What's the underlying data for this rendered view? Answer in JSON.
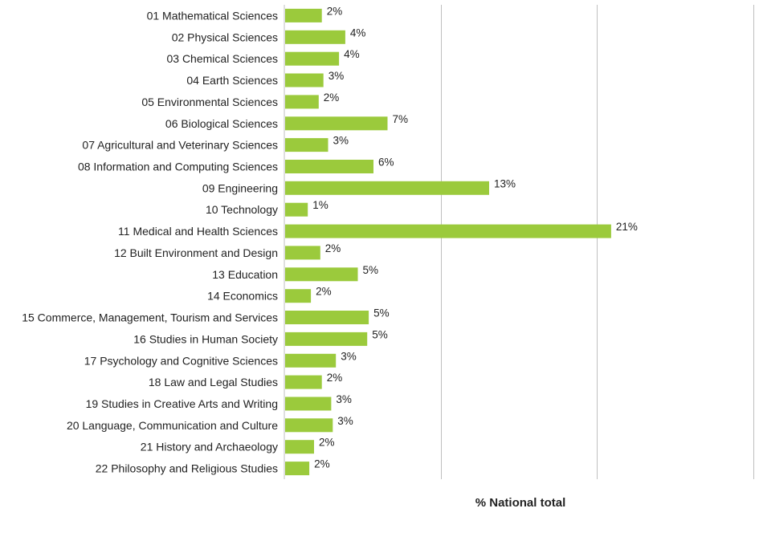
{
  "chart_data": {
    "type": "bar",
    "orientation": "horizontal",
    "categories": [
      "01 Mathematical Sciences",
      "02 Physical Sciences",
      "03 Chemical Sciences",
      "04 Earth Sciences",
      "05 Environmental Sciences",
      "06 Biological Sciences",
      "07 Agricultural and Veterinary Sciences",
      "08 Information and Computing Sciences",
      "09 Engineering",
      "10 Technology",
      "11 Medical and Health Sciences",
      "12 Built Environment and Design",
      "13 Education",
      "14 Economics",
      "15 Commerce, Management, Tourism and Services",
      "16 Studies in Human Society",
      "17 Psychology and Cognitive Sciences",
      "18 Law and Legal Studies",
      "19 Studies in Creative Arts and Writing",
      "20 Language, Communication and Culture",
      "21 History and Archaeology",
      "22 Philosophy and Religious Studies"
    ],
    "values": [
      2.4,
      3.9,
      3.5,
      2.5,
      2.2,
      6.6,
      2.8,
      5.7,
      13.1,
      1.5,
      20.9,
      2.3,
      4.7,
      1.7,
      5.4,
      5.3,
      3.3,
      2.4,
      3.0,
      3.1,
      1.9,
      1.6
    ],
    "value_labels": [
      "2%",
      "4%",
      "4%",
      "3%",
      "2%",
      "7%",
      "3%",
      "6%",
      "13%",
      "1%",
      "21%",
      "2%",
      "5%",
      "2%",
      "5%",
      "5%",
      "3%",
      "2%",
      "3%",
      "3%",
      "2%",
      "2%"
    ],
    "title": "",
    "xlabel": "% National total",
    "ylabel": "",
    "xlim": [
      0,
      30
    ],
    "gridlines_x": [
      10,
      20,
      30
    ],
    "grid": true,
    "bar_color": "#9bca3c",
    "legend": "none"
  }
}
